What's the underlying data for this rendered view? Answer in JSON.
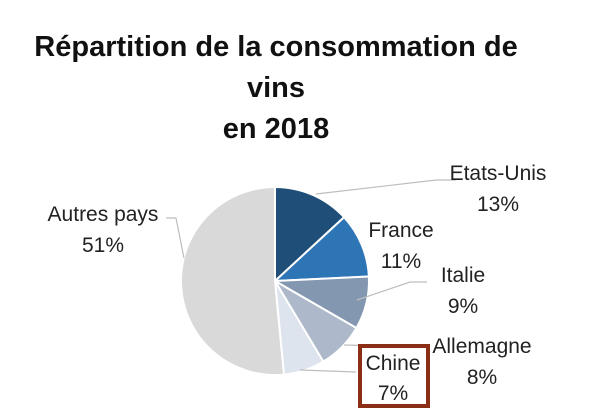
{
  "chart_data": {
    "type": "pie",
    "title": {
      "line1": "Répartition de la consommation de",
      "line2": "vins",
      "line3": "en 2018"
    },
    "slices": [
      {
        "name": "Etats-Unis",
        "value": 13,
        "label": "13%",
        "color": "#1f4e79"
      },
      {
        "name": "France",
        "value": 11,
        "label": "11%",
        "color": "#2e75b6"
      },
      {
        "name": "Italie",
        "value": 9,
        "label": "9%",
        "color": "#8497b0"
      },
      {
        "name": "Allemagne",
        "value": 8,
        "label": "8%",
        "color": "#adb9ca"
      },
      {
        "name": "Chine",
        "value": 7,
        "label": "7%",
        "color": "#dde4ee",
        "highlighted": true
      },
      {
        "name": "Autres pays",
        "value": 51,
        "label": "51%",
        "color": "#d9d9d9"
      }
    ],
    "highlight_color": "#8b2e16"
  }
}
